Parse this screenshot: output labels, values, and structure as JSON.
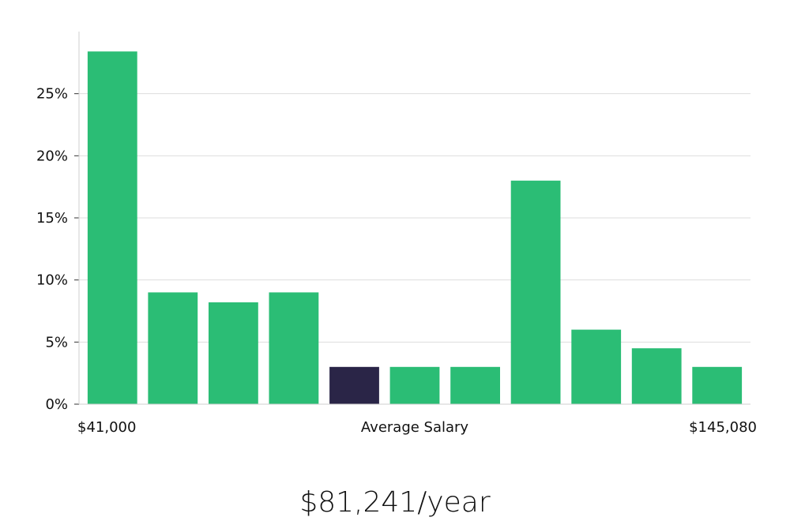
{
  "chart_data": {
    "type": "bar",
    "categories": [
      "1",
      "2",
      "3",
      "4",
      "5",
      "6",
      "7",
      "8",
      "9",
      "10",
      "11"
    ],
    "values": [
      28.4,
      9.0,
      8.2,
      9.0,
      3.0,
      3.0,
      3.0,
      18.0,
      6.0,
      4.5,
      3.0
    ],
    "highlight_index": 4,
    "ylim": [
      0,
      30
    ],
    "yticks": [
      0,
      5,
      10,
      15,
      20,
      25
    ],
    "ytick_labels": [
      "0%",
      "5%",
      "10%",
      "15%",
      "20%",
      "25%"
    ],
    "grid": true,
    "x_labels": {
      "left": "$41,000",
      "center": "Average Salary",
      "right": "$145,080"
    },
    "headline": "$81,241/year",
    "colors": {
      "bar": "#2bbd75",
      "highlight": "#2a2547",
      "grid": "#dddddd",
      "axis": "#cfcfcf"
    }
  }
}
